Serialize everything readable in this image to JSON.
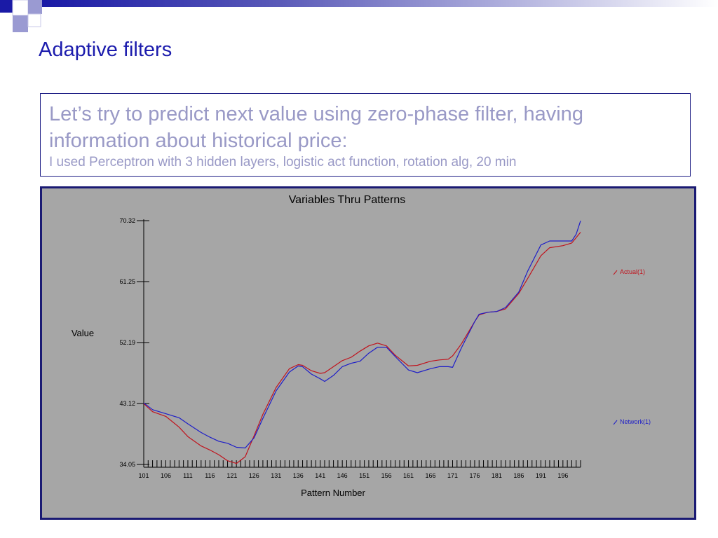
{
  "slide": {
    "title": "Adaptive filters",
    "text_line1": "Let’s try to predict next value using zero-phase filter, having",
    "text_line2": "information about historical price:",
    "text_line3": "I used Perceptron with 3 hidden layers, logistic act function, rotation alg, 20 min"
  },
  "colors": {
    "title": "#1c1cad",
    "body_text": "#9999c6",
    "chart_background": "#a6a6a6",
    "frame_border": "#1a1a73",
    "actual_line": "#c0141e",
    "network_line": "#1e1ec8"
  },
  "chart_data": {
    "type": "line",
    "title": "Variables Thru Patterns",
    "xlabel": "Pattern Number",
    "ylabel": "Value",
    "xlim": [
      101,
      200
    ],
    "ylim": [
      34.05,
      70.32
    ],
    "x_ticks": [
      "101",
      "106",
      "111",
      "116",
      "121",
      "126",
      "131",
      "136",
      "141",
      "146",
      "151",
      "156",
      "161",
      "166",
      "171",
      "176",
      "181",
      "186",
      "191",
      "196"
    ],
    "y_ticks": [
      "70.32",
      "61.25",
      "52.19",
      "43.12",
      "34.05"
    ],
    "grid": false,
    "legend_placement": "right",
    "x": [
      101,
      103,
      106,
      109,
      111,
      114,
      116,
      118,
      120,
      122,
      124,
      126,
      128,
      131,
      134,
      136,
      137,
      139,
      141,
      142,
      144,
      146,
      148,
      150,
      152,
      154,
      156,
      158,
      161,
      163,
      166,
      168,
      170,
      171,
      173,
      176,
      177,
      179,
      181,
      183,
      186,
      188,
      191,
      193,
      196,
      198,
      199,
      200
    ],
    "series": [
      {
        "name": "Actual(1)",
        "values": [
          43.1,
          41.9,
          41.2,
          39.6,
          38.2,
          36.8,
          36.2,
          35.5,
          34.6,
          34.2,
          35.2,
          38.3,
          41.5,
          45.5,
          48.3,
          48.9,
          48.8,
          48.0,
          47.6,
          47.7,
          48.6,
          49.5,
          50.0,
          50.9,
          51.7,
          52.1,
          51.7,
          50.3,
          48.7,
          48.8,
          49.4,
          49.6,
          49.7,
          50.2,
          52.0,
          55.3,
          56.3,
          56.7,
          56.8,
          57.2,
          59.5,
          61.7,
          65.1,
          66.3,
          66.6,
          67.0,
          67.8,
          68.6
        ]
      },
      {
        "name": "Network(1)",
        "values": [
          43.2,
          42.2,
          41.6,
          41.0,
          40.1,
          38.8,
          38.1,
          37.5,
          37.2,
          36.6,
          36.5,
          38.0,
          40.9,
          45.0,
          47.8,
          48.7,
          48.6,
          47.5,
          46.8,
          46.4,
          47.3,
          48.6,
          49.1,
          49.4,
          50.6,
          51.5,
          51.5,
          50.1,
          48.1,
          47.7,
          48.3,
          48.6,
          48.6,
          48.5,
          51.4,
          55.3,
          56.4,
          56.7,
          56.8,
          57.4,
          59.7,
          62.8,
          66.7,
          67.3,
          67.3,
          67.3,
          68.3,
          70.3
        ]
      }
    ]
  }
}
